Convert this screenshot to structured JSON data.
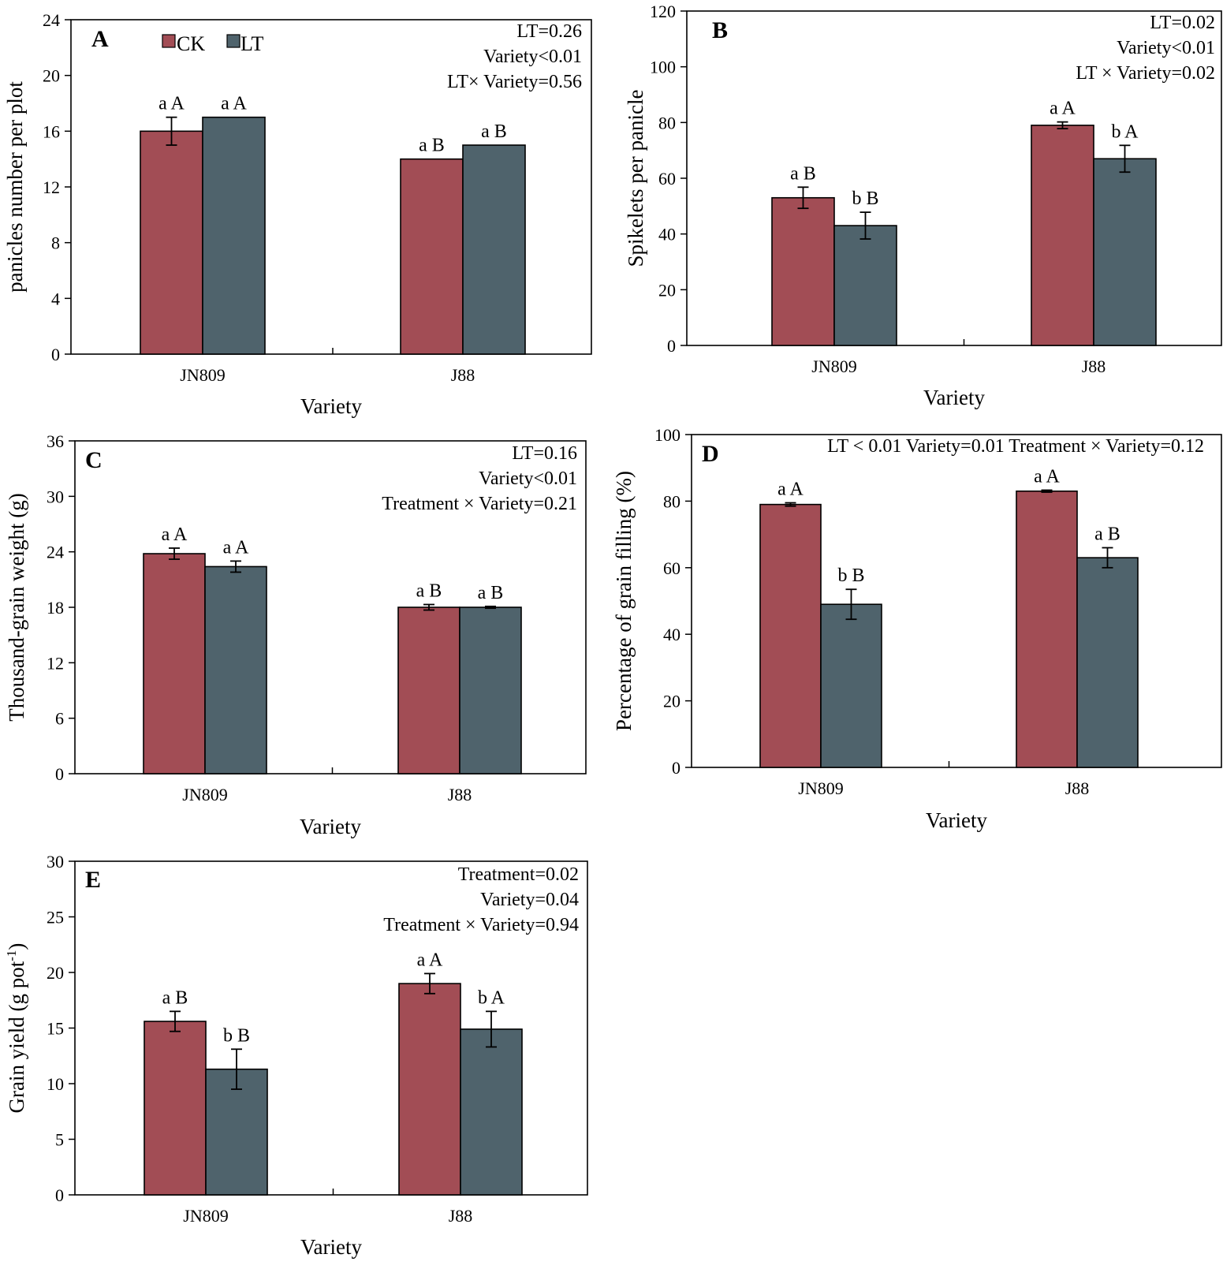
{
  "legend": [
    {
      "name": "CK",
      "color": "#a24d55"
    },
    {
      "name": "LT",
      "color": "#4f636c"
    }
  ],
  "chart_data": [
    {
      "id": "A",
      "type": "bar",
      "panel_label": "A",
      "categories": [
        "JN809",
        "J88"
      ],
      "xlabel": "Variety",
      "ylabel": "panicles number per plot",
      "ylim": [
        0,
        24
      ],
      "yticks": [
        0,
        4,
        8,
        12,
        16,
        20,
        24
      ],
      "series": [
        {
          "name": "CK",
          "values": [
            16,
            14
          ],
          "errors": [
            1.0,
            0
          ],
          "labels": [
            "a A",
            "a B"
          ]
        },
        {
          "name": "LT",
          "values": [
            17,
            15
          ],
          "errors": [
            0,
            0
          ],
          "labels": [
            "a A",
            "a B"
          ]
        }
      ],
      "annotations": [
        "LT=0.26",
        "Variety<0.01",
        "LT× Variety=0.56"
      ]
    },
    {
      "id": "B",
      "type": "bar",
      "panel_label": "B",
      "categories": [
        "JN809",
        "J88"
      ],
      "xlabel": "Variety",
      "ylabel": "Spikelets  per panicle",
      "ylim": [
        0,
        120
      ],
      "yticks": [
        0,
        20,
        40,
        60,
        80,
        100,
        120
      ],
      "series": [
        {
          "name": "CK",
          "values": [
            53,
            79
          ],
          "errors": [
            3.8,
            1.2
          ],
          "labels": [
            "a B",
            "a A"
          ]
        },
        {
          "name": "LT",
          "values": [
            43,
            67
          ],
          "errors": [
            4.8,
            4.8
          ],
          "labels": [
            "b B",
            "b A"
          ]
        }
      ],
      "annotations": [
        "LT=0.02",
        "Variety<0.01",
        "LT × Variety=0.02"
      ]
    },
    {
      "id": "C",
      "type": "bar",
      "panel_label": "C",
      "categories": [
        "JN809",
        "J88"
      ],
      "xlabel": "Variety",
      "ylabel": "Thousand-grain weight (g)",
      "ylim": [
        0,
        36
      ],
      "yticks": [
        0,
        6,
        12,
        18,
        24,
        30,
        36
      ],
      "series": [
        {
          "name": "CK",
          "values": [
            23.8,
            18.0
          ],
          "errors": [
            0.6,
            0.3
          ],
          "labels": [
            "a A",
            "a B"
          ]
        },
        {
          "name": "LT",
          "values": [
            22.4,
            18.0
          ],
          "errors": [
            0.6,
            0.1
          ],
          "labels": [
            "a A",
            "a B"
          ]
        }
      ],
      "annotations": [
        "LT=0.16",
        "Variety<0.01",
        "Treatment × Variety=0.21"
      ]
    },
    {
      "id": "D",
      "type": "bar",
      "panel_label": "D",
      "categories": [
        "JN809",
        "J88"
      ],
      "xlabel": "Variety",
      "ylabel": "Percentage of grain  filling   (%)",
      "ylim": [
        0,
        100
      ],
      "yticks": [
        0,
        20,
        40,
        60,
        80,
        100
      ],
      "series": [
        {
          "name": "CK",
          "values": [
            79,
            83
          ],
          "errors": [
            0.5,
            0.3
          ],
          "labels": [
            "a A",
            "a A"
          ]
        },
        {
          "name": "LT",
          "values": [
            49,
            63
          ],
          "errors": [
            4.5,
            3.0
          ],
          "labels": [
            "b B",
            "a B"
          ]
        }
      ],
      "annotations": [
        "LT < 0.01 Variety=0.01 Treatment × Variety=0.12"
      ]
    },
    {
      "id": "E",
      "type": "bar",
      "panel_label": "E",
      "categories": [
        "JN809",
        "J88"
      ],
      "xlabel": "Variety",
      "ylabel": "Grain  yield (g pot",
      "ylabel_sup": "-1",
      "ylabel_end": ")",
      "ylim": [
        0,
        30
      ],
      "yticks": [
        0,
        5,
        10,
        15,
        20,
        25,
        30
      ],
      "series": [
        {
          "name": "CK",
          "values": [
            15.6,
            19.0
          ],
          "errors": [
            0.9,
            0.9
          ],
          "labels": [
            "a B",
            "a A"
          ]
        },
        {
          "name": "LT",
          "values": [
            11.3,
            14.9
          ],
          "errors": [
            1.8,
            1.6
          ],
          "labels": [
            "b B",
            "b A"
          ]
        }
      ],
      "annotations": [
        "Treatment=0.02",
        "Variety=0.04",
        "Treatment × Variety=0.94"
      ]
    }
  ]
}
